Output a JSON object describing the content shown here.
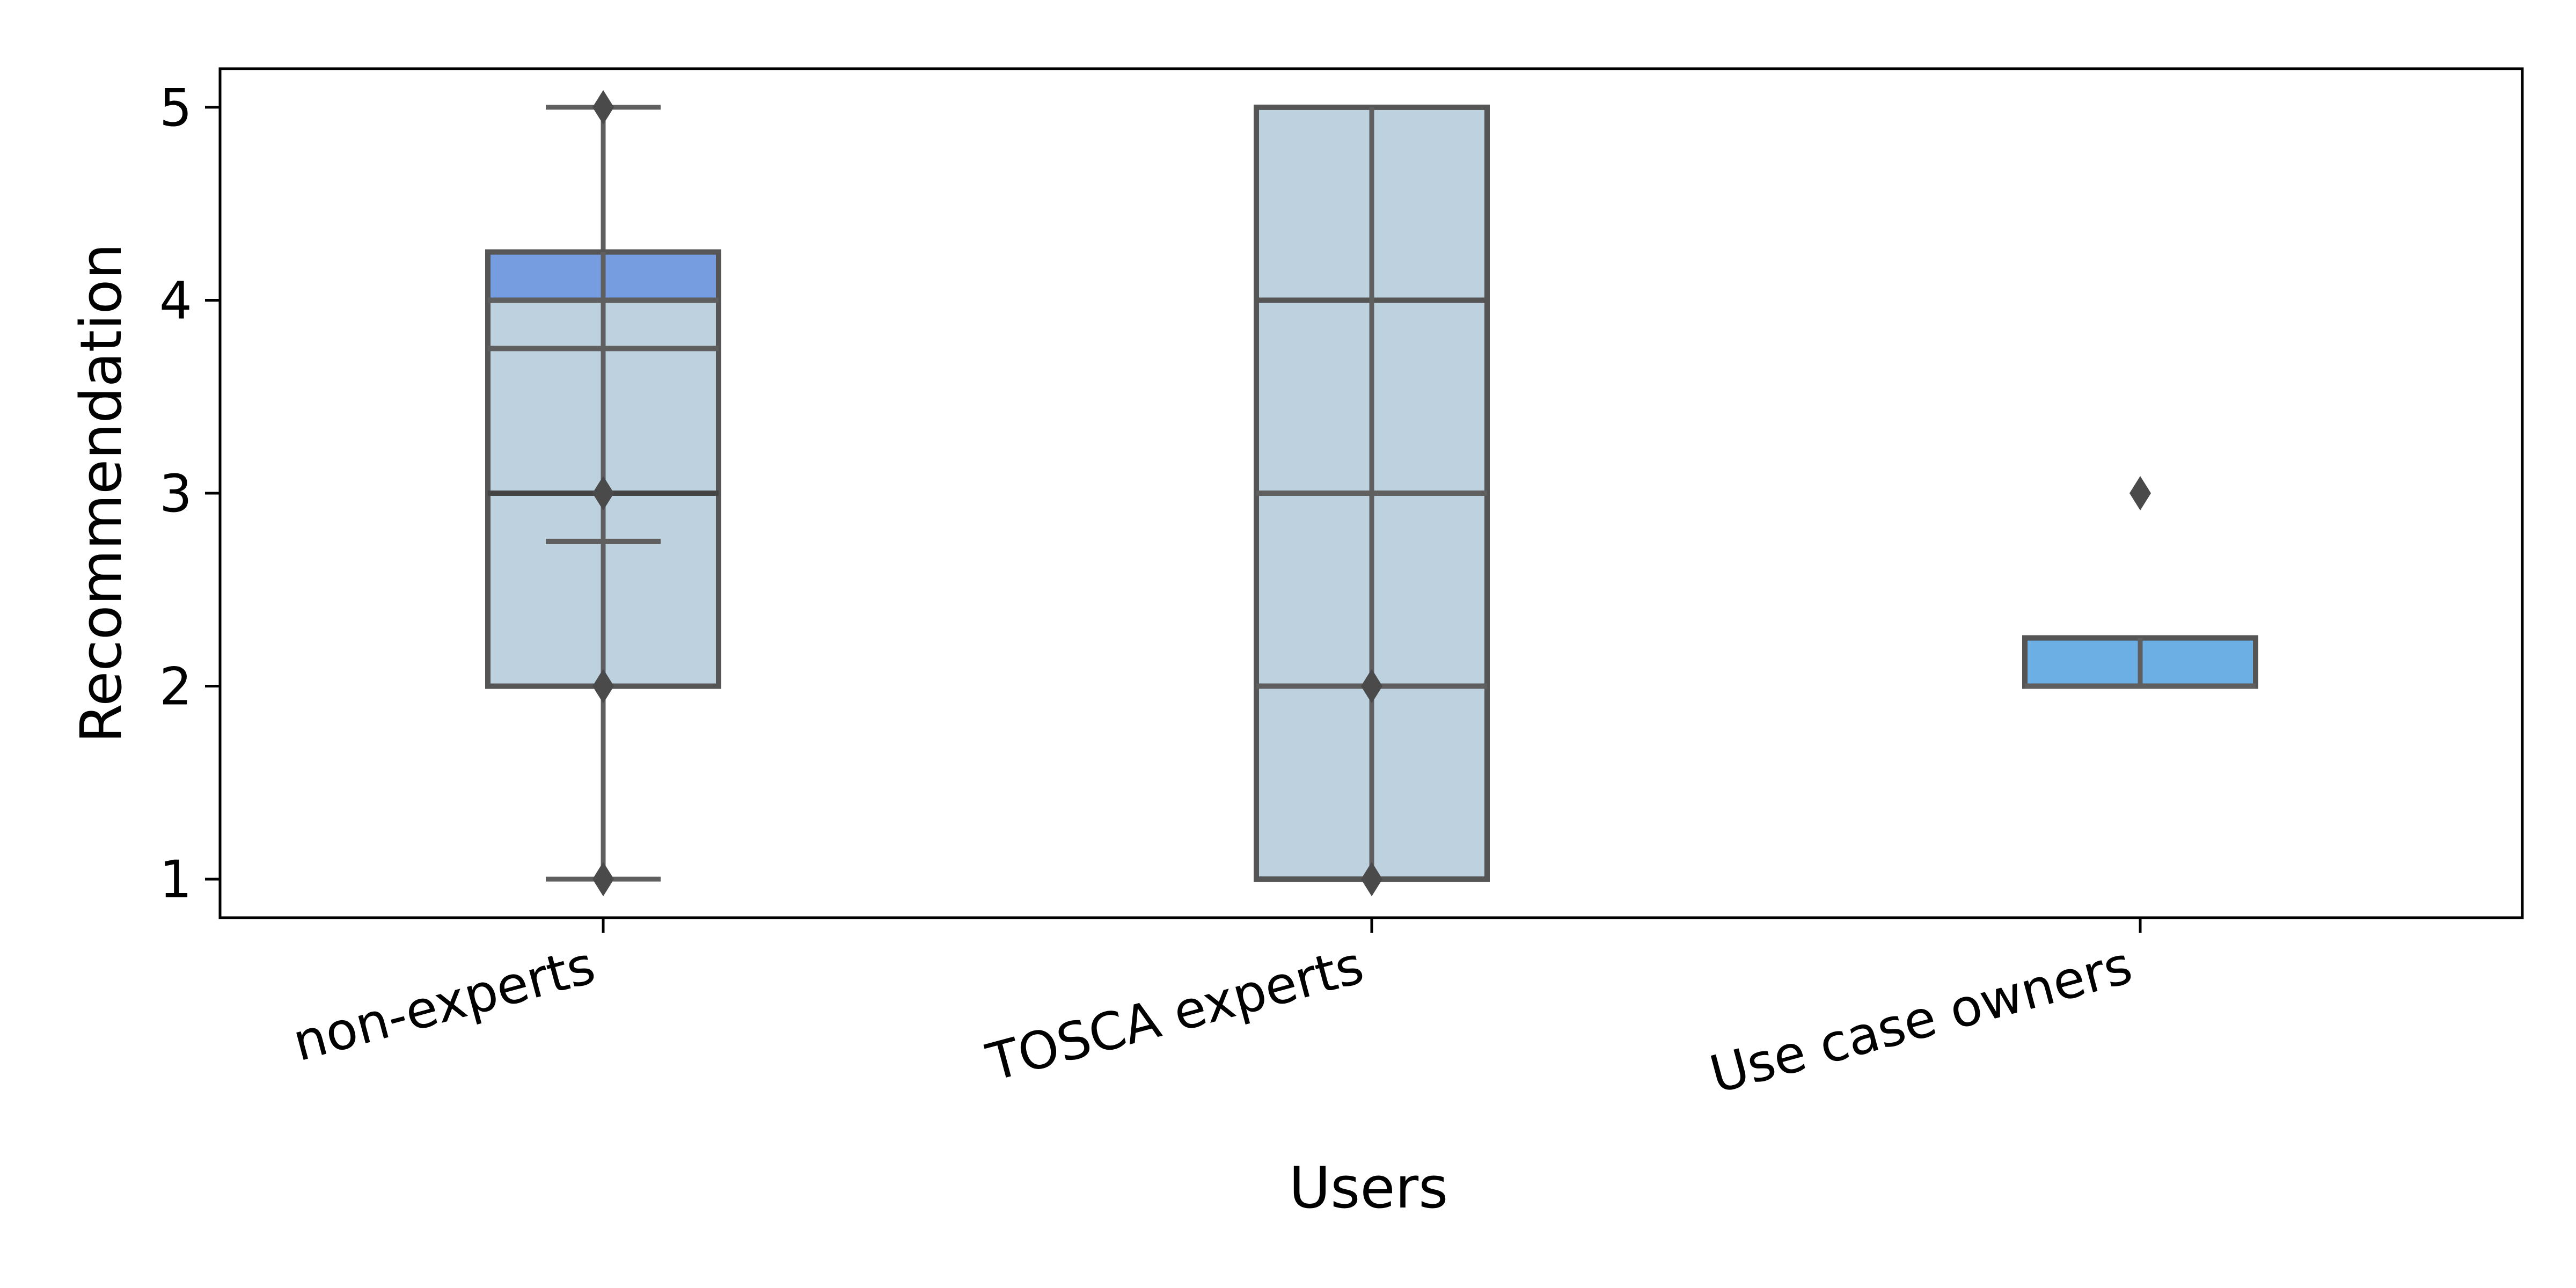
{
  "chart_data": {
    "type": "box",
    "xlabel": "Users",
    "ylabel": "Recommendation",
    "ylim": [
      0.8,
      5.2
    ],
    "y_ticks": [
      "1",
      "2",
      "3",
      "4",
      "5"
    ],
    "categories": [
      "non-experts",
      "TOSCA experts",
      "Use case owners"
    ],
    "grid": false,
    "legend": "none",
    "series": [
      {
        "color": "#ea96a1",
        "boxes": [
          {
            "category": "non-experts",
            "q1": 2.0,
            "median": 2.75,
            "q3": 3.0,
            "whisker_low": 2.0,
            "whisker_high": 3.0,
            "outliers": []
          }
        ]
      },
      {
        "color": "#769ddf",
        "boxes": [
          {
            "category": "non-experts",
            "q1": 3.0,
            "median": 3.75,
            "q3": 4.25,
            "whisker_low": 1.0,
            "whisker_high": 5.0,
            "outliers": []
          }
        ]
      },
      {
        "color": "#bed1de",
        "boxes": [
          {
            "category": "non-experts",
            "q1": 2.0,
            "median": 4.0,
            "q3": 4.0,
            "whisker_low": 2.0,
            "whisker_high": 4.0,
            "outliers": []
          },
          {
            "category": "TOSCA experts",
            "q1": 1.0,
            "median": 3.0,
            "q3": 5.0,
            "whisker_low": 1.0,
            "whisker_high": 5.0,
            "outliers": []
          },
          {
            "category": "TOSCA experts",
            "q1": 1.0,
            "median": 2.0,
            "q3": 4.0,
            "whisker_low": 1.0,
            "whisker_high": 5.0,
            "outliers": []
          }
        ]
      },
      {
        "color": "#6bafe4",
        "boxes": [
          {
            "category": "Use case owners",
            "q1": 2.0,
            "median": 2.0,
            "q3": 2.25,
            "whisker_low": 2.0,
            "whisker_high": 2.25,
            "outliers": [
              3.0
            ]
          }
        ]
      }
    ],
    "outlier_points": [
      {
        "category": "non-experts",
        "y": 5.0
      },
      {
        "category": "non-experts",
        "y": 3.0
      },
      {
        "category": "non-experts",
        "y": 2.0
      },
      {
        "category": "non-experts",
        "y": 1.0
      },
      {
        "category": "TOSCA experts",
        "y": 2.0
      },
      {
        "category": "TOSCA experts",
        "y": 1.0
      },
      {
        "category": "Use case owners",
        "y": 3.0
      }
    ]
  }
}
